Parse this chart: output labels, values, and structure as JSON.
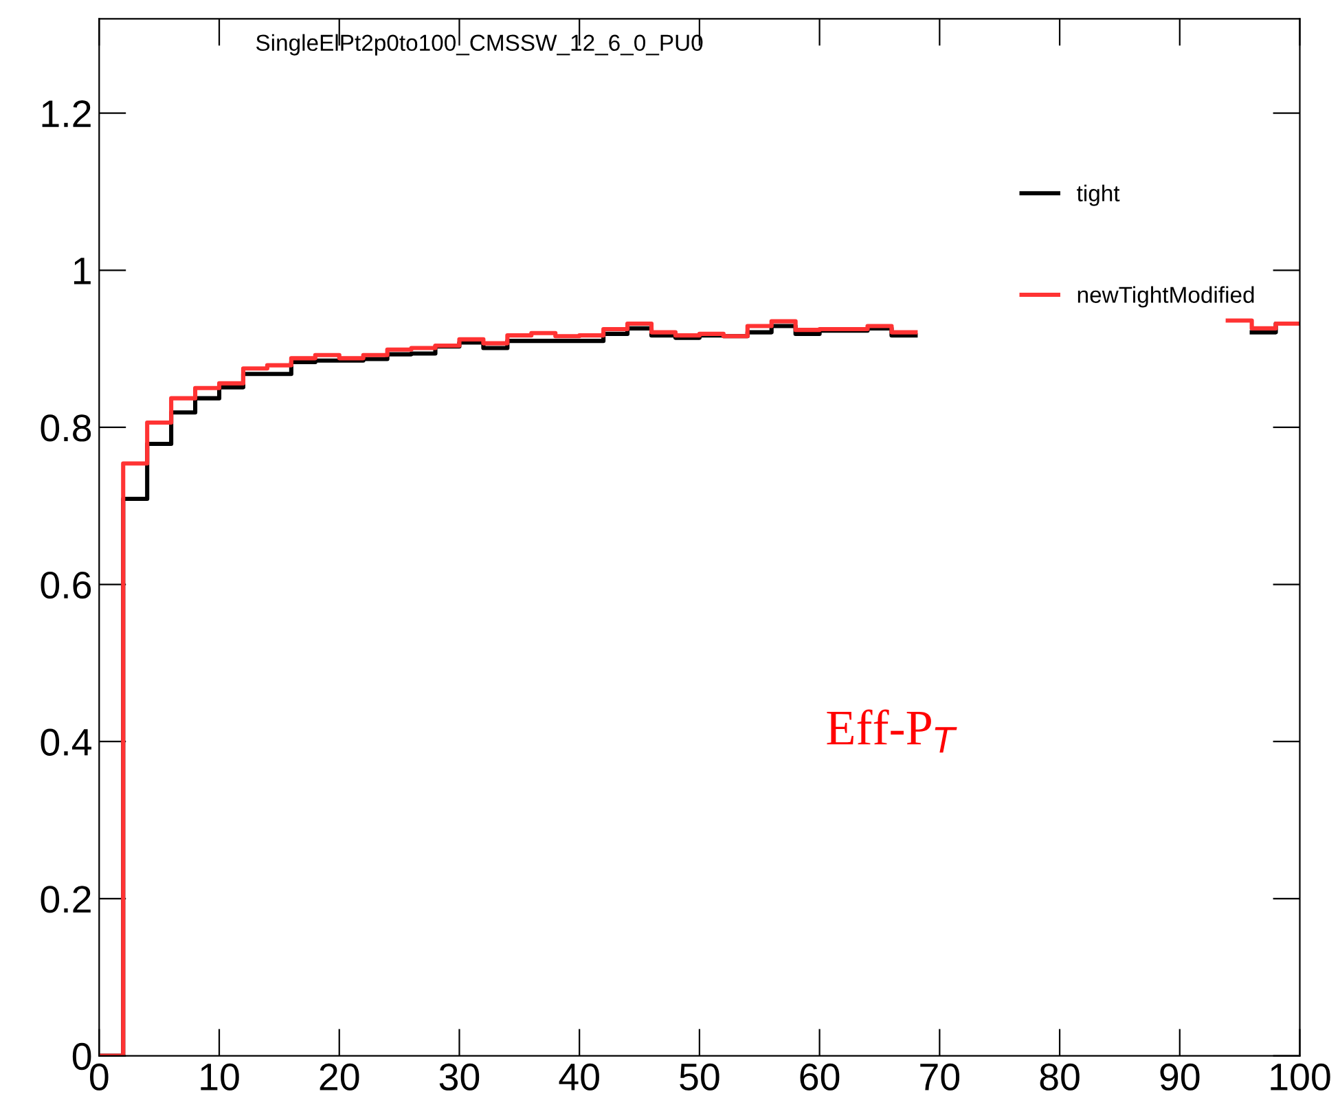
{
  "chart_data": {
    "type": "step",
    "title": "SingleElPt2p0to100_CMSSW_12_6_0_PU0",
    "x": [
      0,
      2,
      4,
      6,
      8,
      10,
      12,
      14,
      16,
      18,
      20,
      22,
      24,
      26,
      28,
      30,
      32,
      34,
      36,
      38,
      40,
      42,
      44,
      46,
      48,
      50,
      52,
      54,
      56,
      58,
      60,
      62,
      64,
      66,
      68,
      70,
      72,
      74,
      76,
      78,
      80,
      82,
      84,
      86,
      88,
      90,
      92,
      94,
      96,
      98,
      100
    ],
    "series": [
      {
        "name": "tight",
        "color": "#000000",
        "values": [
          0,
          0.709,
          0.779,
          0.819,
          0.837,
          0.851,
          0.868,
          0.868,
          0.883,
          0.885,
          0.885,
          0.887,
          0.893,
          0.894,
          0.903,
          0.908,
          0.901,
          0.91,
          0.91,
          0.91,
          0.91,
          0.919,
          0.926,
          0.917,
          0.914,
          0.917,
          0.916,
          0.921,
          0.929,
          0.919,
          0.923,
          0.923,
          0.926,
          0.917,
          null,
          null,
          null,
          null,
          null,
          null,
          null,
          null,
          null,
          null,
          null,
          null,
          null,
          null,
          0.921,
          0.932,
          0.932
        ]
      },
      {
        "name": "newTightModified",
        "color": "#ff3333",
        "values": [
          0,
          0.754,
          0.806,
          0.837,
          0.85,
          0.856,
          0.875,
          0.879,
          0.888,
          0.892,
          0.888,
          0.892,
          0.899,
          0.901,
          0.904,
          0.912,
          0.907,
          0.917,
          0.92,
          0.916,
          0.917,
          0.925,
          0.932,
          0.921,
          0.917,
          0.919,
          0.916,
          0.929,
          0.935,
          0.924,
          0.925,
          0.925,
          0.929,
          0.921,
          null,
          null,
          null,
          null,
          null,
          null,
          null,
          null,
          null,
          null,
          null,
          null,
          null,
          0.936,
          0.926,
          0.932,
          0.932
        ]
      }
    ],
    "xlim": [
      0,
      100
    ],
    "ylim": [
      0,
      1.32
    ],
    "xticks": [
      0,
      10,
      20,
      30,
      40,
      50,
      60,
      70,
      80,
      90,
      100
    ],
    "yticks": [
      0,
      0.2,
      0.4,
      0.6,
      0.8,
      1,
      1.2
    ],
    "annotations": [
      "Eff-P$_{T}$"
    ],
    "legend": "top right",
    "grid": false
  }
}
